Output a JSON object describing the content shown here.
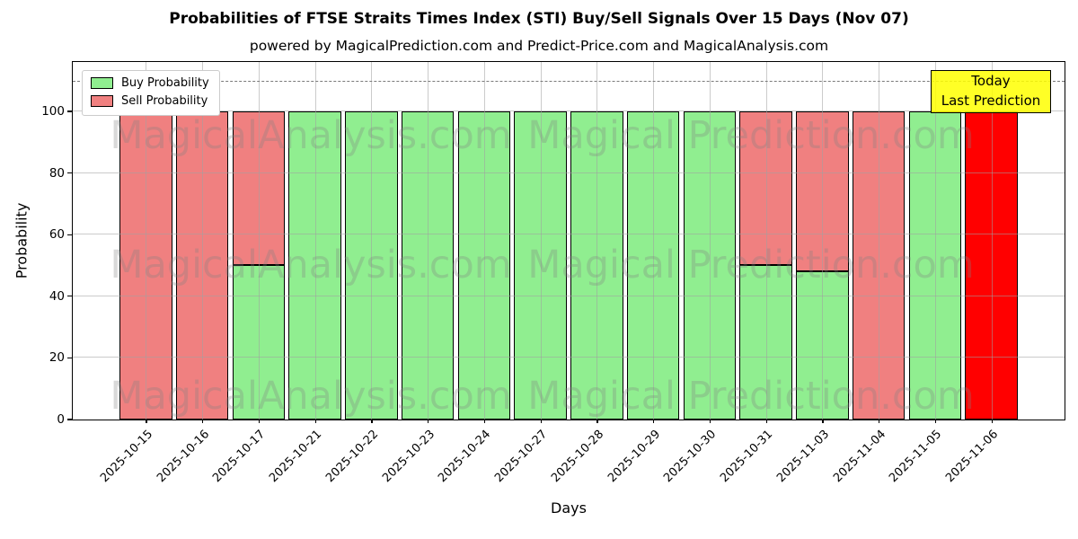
{
  "header": {
    "title": "Probabilities of FTSE Straits Times Index (STI) Buy/Sell Signals Over 15 Days (Nov 07)",
    "subtitle": "powered by MagicalPrediction.com and Predict-Price.com and MagicalAnalysis.com"
  },
  "chart_data": {
    "type": "bar",
    "stacked": true,
    "title": "Probabilities of FTSE Straits Times Index (STI) Buy/Sell Signals Over 15 Days (Nov 07)",
    "subtitle": "powered by MagicalPrediction.com and Predict-Price.com and MagicalAnalysis.com",
    "xlabel": "Days",
    "ylabel": "Probability",
    "ylim": [
      0,
      116
    ],
    "yticks": [
      0,
      20,
      40,
      60,
      80,
      100
    ],
    "grid": true,
    "dashed_threshold_y": 110,
    "categories": [
      "2025-10-15",
      "2025-10-16",
      "2025-10-17",
      "2025-10-21",
      "2025-10-22",
      "2025-10-23",
      "2025-10-24",
      "2025-10-27",
      "2025-10-28",
      "2025-10-29",
      "2025-10-30",
      "2025-10-31",
      "2025-11-03",
      "2025-11-04",
      "2025-11-05",
      "2025-11-06"
    ],
    "series": [
      {
        "name": "Buy Probability",
        "color": "#90EE90",
        "values": [
          0,
          0,
          50,
          100,
          100,
          100,
          100,
          100,
          100,
          100,
          100,
          50,
          48,
          0,
          100,
          0
        ]
      },
      {
        "name": "Sell Probability",
        "color": "#F08080",
        "values": [
          100,
          100,
          50,
          0,
          0,
          0,
          0,
          0,
          0,
          0,
          0,
          50,
          52,
          100,
          0,
          100
        ]
      }
    ],
    "highlight": {
      "index": 15,
      "sell_color": "#FF0000",
      "box_color": "#FFFF00"
    },
    "legend": {
      "position": "upper left"
    },
    "watermarks": [
      "MagicalAnalysis.com",
      "MagicalPrediction.com"
    ]
  },
  "annotation": {
    "line1": "Today",
    "line2": "Last Prediction"
  }
}
